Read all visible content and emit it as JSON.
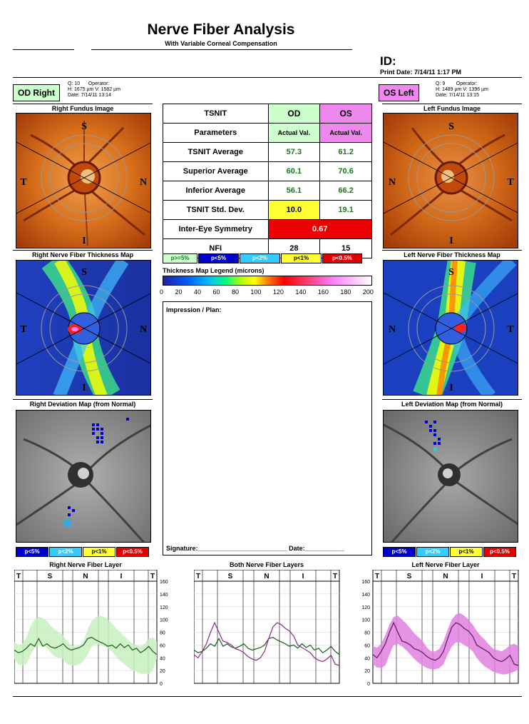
{
  "header": {
    "title": "Nerve Fiber Analysis",
    "subtitle": "With Variable Corneal Compensation",
    "id_label": "ID:",
    "print_date": "Print Date: 7/14/11 1:17 PM"
  },
  "od": {
    "badge": "OD   Right",
    "q": "Q: 10",
    "operator": "Operator:",
    "hv": "H: 1675 µm  V: 1582 µm",
    "date": "Date: 7/14/11 13:14",
    "fundus_caption": "Right Fundus Image",
    "thickness_caption": "Right Nerve Fiber Thickness Map",
    "deviation_caption": "Right Deviation Map (from Normal)",
    "chart_caption": "Right Nerve Fiber Layer"
  },
  "os": {
    "badge": "OS   Left",
    "q": "Q: 9",
    "operator": "Operator:",
    "hv": "H: 1489 µm  V: 1396 µm",
    "date": "Date: 7/14/11 13:15",
    "fundus_caption": "Left Fundus Image",
    "thickness_caption": "Left Nerve Fiber Thickness Map",
    "deviation_caption": "Left Deviation Map (from Normal)",
    "chart_caption": "Left Nerve Fiber Layer"
  },
  "both_chart_caption": "Both Nerve Fiber Layers",
  "fundus_labels": {
    "s": "S",
    "t": "T",
    "n": "N",
    "i": "I"
  },
  "table": {
    "h1": "TSNIT",
    "h2": "Parameters",
    "od_h": "OD",
    "os_h": "OS",
    "actual": "Actual Val.",
    "rows": [
      {
        "label": "TSNIT Average",
        "od": "57.3",
        "os": "61.2"
      },
      {
        "label": "Superior Average",
        "od": "60.1",
        "os": "70.6"
      },
      {
        "label": "Inferior Average",
        "od": "56.1",
        "os": "66.2"
      },
      {
        "label": "TSNIT Std. Dev.",
        "od": "10.0",
        "os": "19.1"
      }
    ],
    "symmetry_label": "Inter-Eye Symmetry",
    "symmetry_value": "0.67",
    "nfi_label": "NFI",
    "nfi_od": "28",
    "nfi_os": "15"
  },
  "prob_legend": [
    "p>=5%",
    "p<5%",
    "p<2%",
    "p<1%",
    "p<0.5%"
  ],
  "prob_colors": [
    "#ccffcc",
    "#0000cc",
    "#33ccff",
    "#ffff33",
    "#e00000"
  ],
  "deviation_legend": [
    "p<5%",
    "p<2%",
    "p<1%",
    "p<0.5%"
  ],
  "thickness_legend": {
    "title": "Thickness Map Legend (microns)",
    "ticks": [
      "0",
      "20",
      "40",
      "60",
      "80",
      "100",
      "120",
      "140",
      "160",
      "180",
      "200"
    ]
  },
  "impression": {
    "label": "Impression / Plan:",
    "signature": "Signature:_________________________  Date:___________"
  },
  "chart_data": [
    {
      "type": "line",
      "title": "Right Nerve Fiber Layer",
      "x_labels": [
        "T",
        "S",
        "N",
        "I",
        "T"
      ],
      "ylim": [
        0,
        160
      ],
      "yticks": [
        0,
        20,
        40,
        60,
        80,
        100,
        120,
        140,
        160
      ],
      "normal_band_color": "#c8f0c0",
      "series": [
        {
          "color": "#1a5a1a",
          "values": [
            52,
            48,
            50,
            55,
            62,
            58,
            70,
            58,
            62,
            57,
            55,
            58,
            62,
            55,
            52,
            54,
            56,
            60,
            70,
            72,
            68,
            65,
            62,
            58,
            60,
            55,
            62,
            56,
            60,
            52,
            55,
            48,
            52,
            58,
            50,
            45
          ],
          "lower": [
            38,
            30,
            28,
            30,
            45,
            55,
            60,
            58,
            55,
            48,
            42,
            40,
            38,
            30,
            28,
            28,
            30,
            35,
            45,
            58,
            62,
            60,
            58,
            55,
            50,
            42,
            35,
            30,
            25,
            20,
            18,
            15,
            15,
            14,
            20,
            38
          ],
          "upper": [
            65,
            60,
            62,
            72,
            90,
            100,
            104,
            102,
            98,
            90,
            84,
            80,
            75,
            66,
            60,
            58,
            60,
            66,
            84,
            98,
            104,
            106,
            104,
            100,
            94,
            86,
            80,
            74,
            68,
            62,
            60,
            58,
            62,
            70,
            72,
            66
          ]
        }
      ]
    },
    {
      "type": "line",
      "title": "Both Nerve Fiber Layers",
      "x_labels": [
        "T",
        "S",
        "N",
        "I",
        "T"
      ],
      "series": [
        {
          "color": "#1a5a1a",
          "values": [
            52,
            48,
            50,
            55,
            62,
            58,
            70,
            58,
            62,
            57,
            55,
            58,
            62,
            55,
            52,
            54,
            56,
            60,
            70,
            72,
            68,
            65,
            62,
            58,
            60,
            55,
            62,
            56,
            60,
            52,
            55,
            48,
            52,
            58,
            50,
            45
          ]
        },
        {
          "color": "#8a2a8a",
          "values": [
            45,
            40,
            50,
            62,
            80,
            95,
            80,
            66,
            64,
            60,
            54,
            52,
            48,
            42,
            38,
            36,
            40,
            50,
            70,
            88,
            95,
            92,
            86,
            82,
            74,
            60,
            56,
            52,
            48,
            40,
            36,
            34,
            38,
            44,
            30,
            28
          ]
        }
      ]
    },
    {
      "type": "line",
      "title": "Left Nerve Fiber Layer",
      "x_labels": [
        "T",
        "S",
        "N",
        "I",
        "T"
      ],
      "ylim": [
        0,
        160
      ],
      "yticks": [
        0,
        20,
        40,
        60,
        80,
        100,
        120,
        140,
        160
      ],
      "normal_band_color": "#e080e0",
      "series": [
        {
          "color": "#5a1a5a",
          "values": [
            45,
            40,
            50,
            62,
            80,
            95,
            80,
            66,
            64,
            60,
            54,
            52,
            48,
            42,
            38,
            36,
            40,
            50,
            70,
            88,
            95,
            92,
            86,
            82,
            74,
            60,
            56,
            52,
            48,
            40,
            36,
            34,
            38,
            44,
            30,
            28
          ],
          "lower": [
            30,
            25,
            24,
            28,
            45,
            60,
            62,
            58,
            52,
            45,
            38,
            32,
            28,
            24,
            22,
            22,
            24,
            30,
            45,
            58,
            64,
            64,
            60,
            56,
            50,
            40,
            32,
            26,
            22,
            18,
            16,
            14,
            14,
            16,
            18,
            22
          ],
          "upper": [
            58,
            56,
            62,
            76,
            92,
            104,
            106,
            100,
            94,
            86,
            78,
            72,
            66,
            56,
            50,
            50,
            54,
            66,
            84,
            100,
            108,
            110,
            106,
            100,
            92,
            82,
            74,
            68,
            60,
            54,
            52,
            50,
            54,
            60,
            62,
            58
          ]
        }
      ]
    }
  ]
}
